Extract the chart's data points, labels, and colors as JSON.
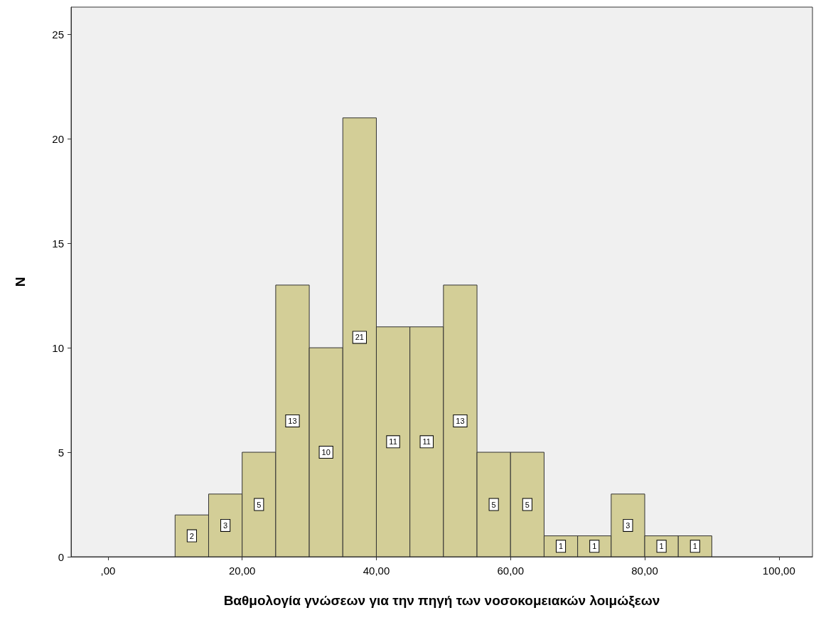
{
  "chart_data": {
    "type": "histogram",
    "xlabel": "Βαθμολογία γνώσεων για την πηγή των νοσοκομειακών λοιμώξεων",
    "ylabel": "N",
    "bins": [
      10,
      15,
      20,
      25,
      30,
      35,
      40,
      45,
      50,
      55,
      60,
      65,
      70,
      75,
      80,
      85,
      90
    ],
    "values": [
      2,
      3,
      5,
      13,
      10,
      21,
      11,
      11,
      13,
      5,
      5,
      1,
      1,
      3,
      1,
      1
    ],
    "color": "#d3ce97",
    "xlim": [
      -5.5,
      105
    ],
    "xticks": [
      {
        "value": 0,
        "label": ",00"
      },
      {
        "value": 20,
        "label": "20,00"
      },
      {
        "value": 40,
        "label": "40,00"
      },
      {
        "value": 60,
        "label": "60,00"
      },
      {
        "value": 80,
        "label": "80,00"
      },
      {
        "value": 100,
        "label": "100,00"
      }
    ],
    "ylim": [
      0,
      26.3
    ],
    "yticks": [
      0,
      5,
      10,
      15,
      20,
      25
    ],
    "data_labels": true
  }
}
